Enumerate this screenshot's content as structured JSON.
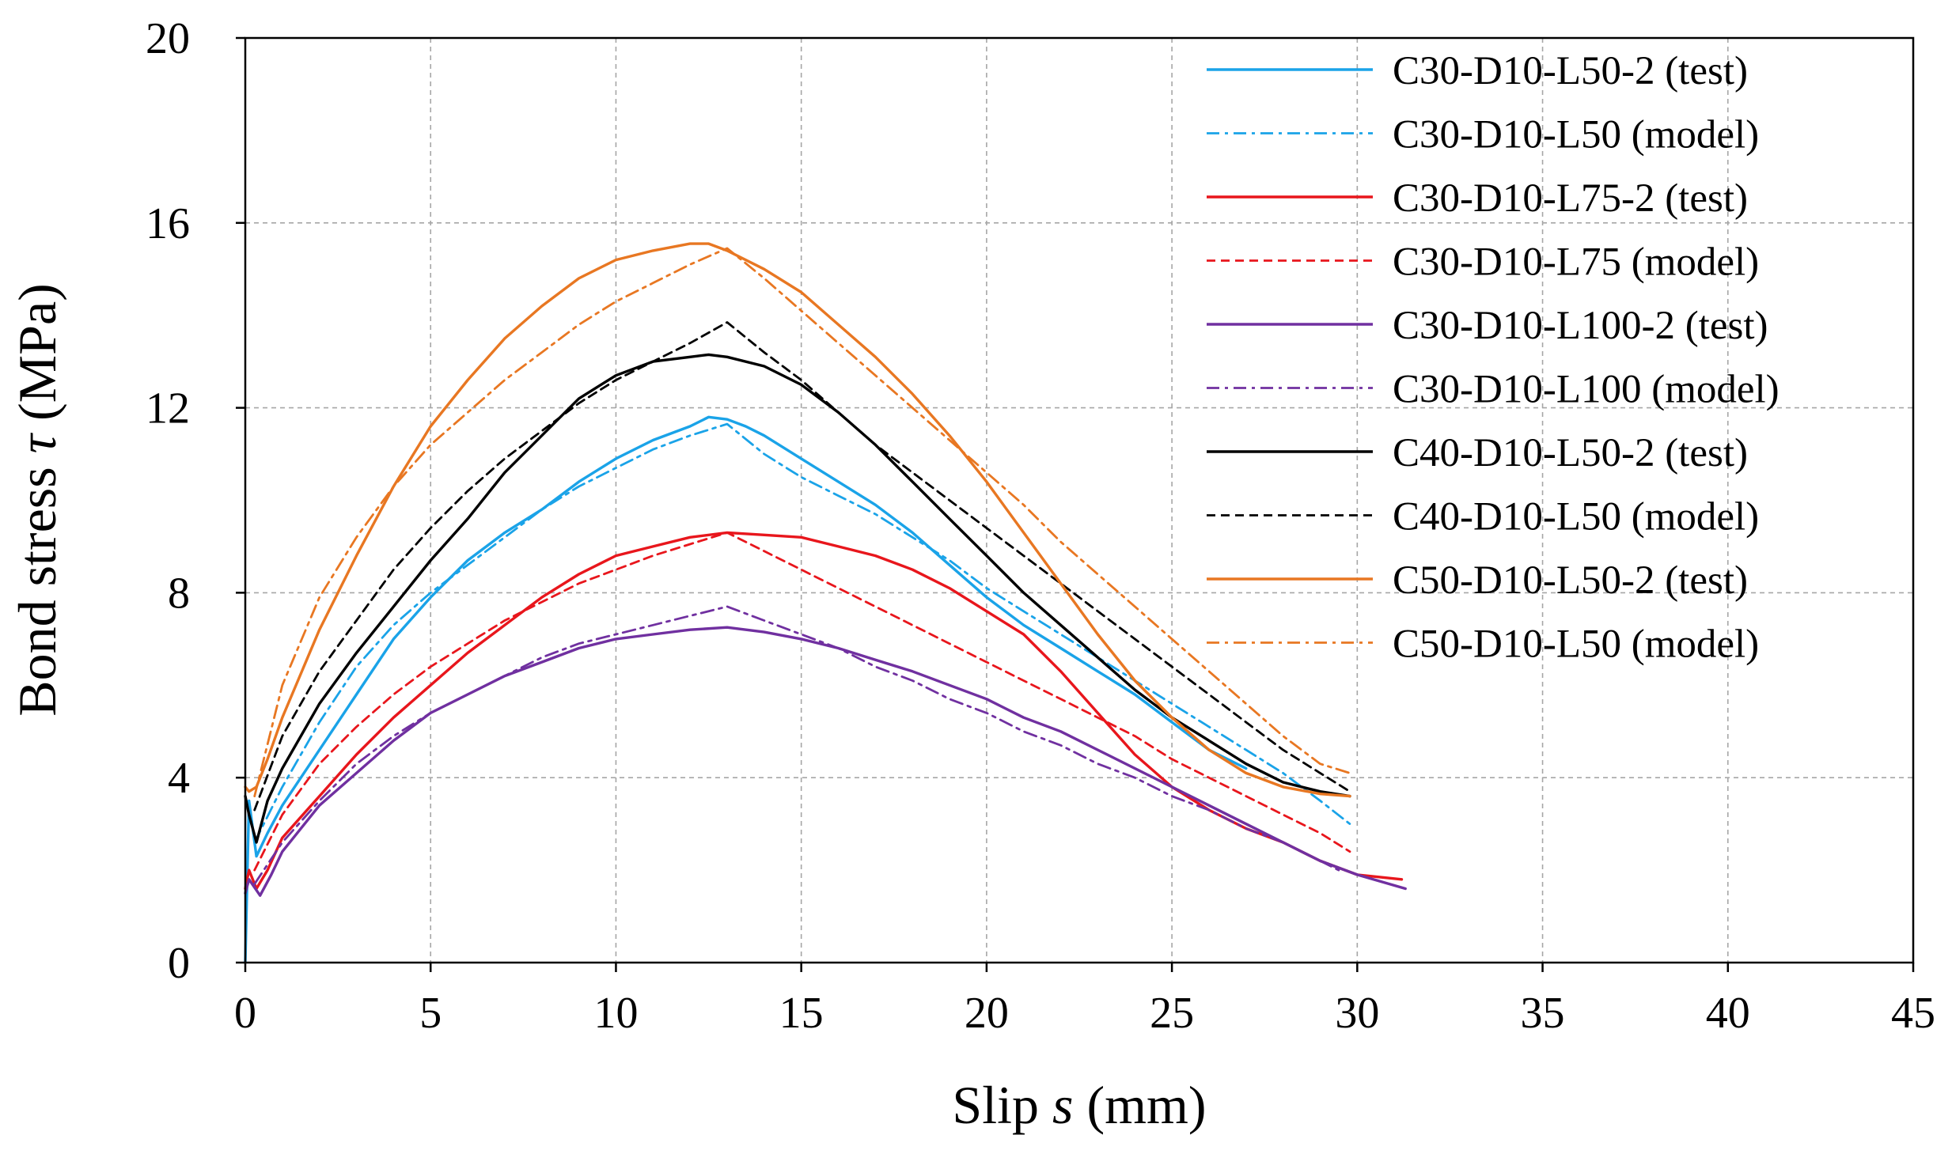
{
  "chart_data": {
    "type": "line",
    "title": "",
    "xlabel_prefix": "Slip ",
    "xlabel_symbol": "s",
    "xlabel_suffix": " (mm)",
    "ylabel_prefix": "Bond stress ",
    "ylabel_symbol": "τ",
    "ylabel_suffix": " (MPa)",
    "xlim": [
      0,
      45
    ],
    "ylim": [
      0,
      20
    ],
    "xticks": [
      0,
      5,
      10,
      15,
      20,
      25,
      30,
      35,
      40,
      45
    ],
    "yticks": [
      0,
      4,
      8,
      12,
      16,
      20
    ],
    "xtick_labels": [
      "0",
      "5",
      "10",
      "15",
      "20",
      "25",
      "30",
      "35",
      "40",
      "45"
    ],
    "ytick_labels": [
      "0",
      "4",
      "8",
      "12",
      "16",
      "20"
    ],
    "grid": true,
    "legend_position": "top-right",
    "series": [
      {
        "name": "C30-D10-L50-2 (test)",
        "color": "#1aa3e8",
        "style": "solid",
        "x": [
          0,
          0.1,
          0.3,
          0.6,
          1,
          2,
          3,
          4,
          5,
          6,
          7,
          8,
          9,
          10,
          11,
          12,
          12.5,
          13,
          13.5,
          14,
          15,
          16,
          17,
          18,
          19,
          20,
          21,
          22,
          23,
          24,
          25,
          26,
          27
        ],
        "y": [
          0,
          3.5,
          2.3,
          2.8,
          3.4,
          4.6,
          5.8,
          7.0,
          7.9,
          8.7,
          9.3,
          9.8,
          10.4,
          10.9,
          11.3,
          11.6,
          11.8,
          11.75,
          11.6,
          11.4,
          10.9,
          10.4,
          9.9,
          9.3,
          8.6,
          7.9,
          7.3,
          6.8,
          6.3,
          5.8,
          5.2,
          4.6,
          4.2
        ]
      },
      {
        "name": "C30-D10-L50 (model)",
        "color": "#1aa3e8",
        "style": "dashdot",
        "x": [
          0.25,
          1,
          2,
          3,
          4,
          5,
          6,
          7,
          8,
          9,
          10,
          11,
          12,
          13,
          14,
          15,
          16,
          17,
          18,
          19,
          20,
          21,
          22,
          23,
          24,
          25,
          26,
          27,
          28,
          29,
          29.8
        ],
        "y": [
          2.6,
          3.8,
          5.2,
          6.4,
          7.3,
          8.0,
          8.6,
          9.2,
          9.8,
          10.3,
          10.7,
          11.1,
          11.4,
          11.65,
          11.0,
          10.5,
          10.1,
          9.7,
          9.2,
          8.7,
          8.1,
          7.6,
          7.1,
          6.6,
          6.1,
          5.6,
          5.1,
          4.6,
          4.1,
          3.5,
          3.0
        ]
      },
      {
        "name": "C30-D10-L75-2 (test)",
        "color": "#e8161c",
        "style": "solid",
        "x": [
          0,
          0.1,
          0.3,
          0.6,
          1,
          2,
          3,
          4,
          5,
          6,
          7,
          8,
          9,
          10,
          11,
          12,
          13,
          14,
          15,
          16,
          17,
          18,
          19,
          20,
          21,
          22,
          23,
          24,
          25,
          26,
          27,
          28,
          29,
          30,
          31.2
        ],
        "y": [
          1.6,
          2.0,
          1.6,
          2.0,
          2.7,
          3.6,
          4.5,
          5.3,
          6.0,
          6.7,
          7.3,
          7.9,
          8.4,
          8.8,
          9.0,
          9.2,
          9.3,
          9.25,
          9.2,
          9.0,
          8.8,
          8.5,
          8.1,
          7.6,
          7.1,
          6.3,
          5.4,
          4.5,
          3.8,
          3.3,
          2.9,
          2.6,
          2.2,
          1.9,
          1.8
        ]
      },
      {
        "name": "C30-D10-L75 (model)",
        "color": "#e8161c",
        "style": "dashed",
        "x": [
          0.25,
          1,
          2,
          3,
          4,
          5,
          6,
          7,
          8,
          9,
          10,
          11,
          12,
          13,
          14,
          15,
          16,
          17,
          18,
          19,
          20,
          21,
          22,
          23,
          24,
          25,
          26,
          27,
          28,
          29,
          29.8
        ],
        "y": [
          2.0,
          3.2,
          4.3,
          5.1,
          5.8,
          6.4,
          6.9,
          7.4,
          7.8,
          8.2,
          8.5,
          8.8,
          9.05,
          9.3,
          8.9,
          8.5,
          8.1,
          7.7,
          7.3,
          6.9,
          6.5,
          6.1,
          5.7,
          5.3,
          4.9,
          4.4,
          4.0,
          3.6,
          3.2,
          2.8,
          2.4
        ]
      },
      {
        "name": "C30-D10-L100-2 (test)",
        "color": "#7030a0",
        "style": "solid",
        "x": [
          0,
          0.1,
          0.4,
          0.7,
          1,
          2,
          3,
          4,
          5,
          6,
          7,
          8,
          9,
          10,
          11,
          12,
          13,
          14,
          15,
          16,
          17,
          18,
          19,
          20,
          21,
          22,
          23,
          24,
          25,
          26,
          27,
          28,
          29,
          30,
          31.3
        ],
        "y": [
          1.5,
          1.8,
          1.45,
          1.9,
          2.4,
          3.4,
          4.1,
          4.8,
          5.4,
          5.8,
          6.2,
          6.5,
          6.8,
          7.0,
          7.1,
          7.2,
          7.25,
          7.15,
          7.0,
          6.8,
          6.55,
          6.3,
          6.0,
          5.7,
          5.3,
          5.0,
          4.6,
          4.2,
          3.8,
          3.4,
          3.0,
          2.6,
          2.2,
          1.9,
          1.6
        ]
      },
      {
        "name": "C30-D10-L100 (model)",
        "color": "#7030a0",
        "style": "dashdot",
        "x": [
          0.25,
          1,
          2,
          3,
          4,
          5,
          6,
          7,
          8,
          9,
          10,
          11,
          12,
          13,
          14,
          15,
          16,
          17,
          18,
          19,
          20,
          21,
          22,
          23,
          24,
          25,
          26,
          27,
          28,
          29,
          29.5
        ],
        "y": [
          1.7,
          2.6,
          3.5,
          4.3,
          4.9,
          5.4,
          5.8,
          6.2,
          6.6,
          6.9,
          7.1,
          7.3,
          7.5,
          7.7,
          7.4,
          7.1,
          6.8,
          6.4,
          6.1,
          5.7,
          5.4,
          5.0,
          4.7,
          4.3,
          4.0,
          3.6,
          3.3,
          2.9,
          2.6,
          2.2,
          2.0
        ]
      },
      {
        "name": "C40-D10-L50-2 (test)",
        "color": "#000000",
        "style": "solid",
        "x": [
          0,
          0.1,
          0.3,
          0.6,
          1,
          2,
          3,
          4,
          5,
          6,
          7,
          8,
          9,
          10,
          11,
          12,
          12.5,
          13,
          14,
          15,
          16,
          17,
          18,
          19,
          20,
          21,
          22,
          23,
          24,
          25,
          26,
          27,
          28,
          29,
          29.8
        ],
        "y": [
          3.6,
          3.2,
          2.6,
          3.5,
          4.2,
          5.6,
          6.7,
          7.7,
          8.7,
          9.6,
          10.6,
          11.4,
          12.2,
          12.7,
          13.0,
          13.1,
          13.15,
          13.1,
          12.9,
          12.5,
          11.9,
          11.2,
          10.4,
          9.6,
          8.8,
          8.0,
          7.3,
          6.6,
          5.9,
          5.3,
          4.8,
          4.3,
          3.9,
          3.7,
          3.6
        ]
      },
      {
        "name": "C40-D10-L50 (model)",
        "color": "#000000",
        "style": "dashed",
        "x": [
          0.25,
          1,
          2,
          3,
          4,
          5,
          6,
          7,
          8,
          9,
          10,
          11,
          12,
          13,
          14,
          15,
          16,
          17,
          18,
          19,
          20,
          21,
          22,
          23,
          24,
          25,
          26,
          27,
          28,
          29,
          29.8
        ],
        "y": [
          3.3,
          4.9,
          6.3,
          7.4,
          8.5,
          9.4,
          10.2,
          10.9,
          11.5,
          12.1,
          12.6,
          13.0,
          13.4,
          13.85,
          13.2,
          12.6,
          11.9,
          11.2,
          10.6,
          10.0,
          9.4,
          8.8,
          8.2,
          7.6,
          7.0,
          6.4,
          5.8,
          5.2,
          4.6,
          4.1,
          3.7
        ]
      },
      {
        "name": "C50-D10-L50-2 (test)",
        "color": "#e87722",
        "style": "solid",
        "x": [
          0,
          0.1,
          0.3,
          0.6,
          1,
          2,
          3,
          4,
          5,
          6,
          7,
          8,
          9,
          10,
          11,
          12,
          12.5,
          13,
          14,
          15,
          16,
          17,
          18,
          19,
          20,
          21,
          22,
          23,
          24,
          25,
          26,
          27,
          28,
          29,
          29.8
        ],
        "y": [
          3.8,
          3.7,
          3.8,
          4.4,
          5.3,
          7.2,
          8.8,
          10.3,
          11.6,
          12.6,
          13.5,
          14.2,
          14.8,
          15.2,
          15.4,
          15.55,
          15.55,
          15.4,
          15.0,
          14.5,
          13.8,
          13.1,
          12.3,
          11.4,
          10.4,
          9.3,
          8.2,
          7.1,
          6.1,
          5.3,
          4.6,
          4.1,
          3.8,
          3.65,
          3.6
        ]
      },
      {
        "name": "C50-D10-L50 (model)",
        "color": "#e87722",
        "style": "dashdot",
        "x": [
          0.25,
          1,
          2,
          3,
          4,
          5,
          6,
          7,
          8,
          9,
          10,
          11,
          12,
          13,
          14,
          15,
          16,
          17,
          18,
          19,
          20,
          21,
          22,
          23,
          24,
          25,
          26,
          27,
          28,
          29,
          29.8
        ],
        "y": [
          3.6,
          6.0,
          7.9,
          9.2,
          10.3,
          11.2,
          11.9,
          12.6,
          13.2,
          13.8,
          14.3,
          14.7,
          15.1,
          15.45,
          14.8,
          14.1,
          13.4,
          12.7,
          12.0,
          11.3,
          10.6,
          9.9,
          9.1,
          8.4,
          7.7,
          7.0,
          6.3,
          5.6,
          4.9,
          4.3,
          4.1
        ]
      }
    ]
  }
}
